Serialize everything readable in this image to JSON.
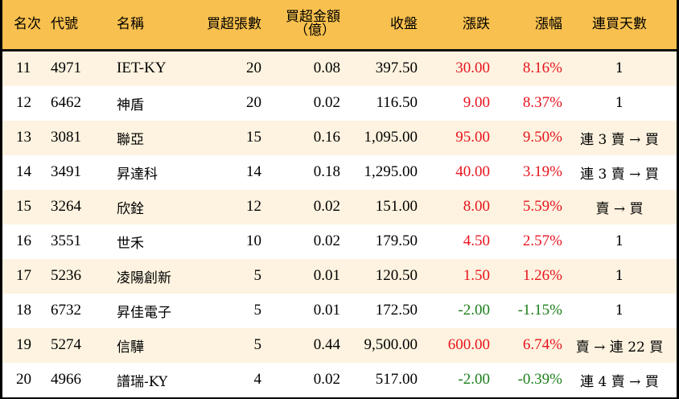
{
  "table": {
    "headers": {
      "rank": "名次",
      "code": "代號",
      "name": "名稱",
      "net_buy_lots": "買超張數",
      "net_buy_amount_l1": "買超金額",
      "net_buy_amount_l2": "（億）",
      "close": "收盤",
      "change": "漲跌",
      "change_pct": "漲幅",
      "consecutive_days": "連買天數"
    },
    "colors": {
      "header_bg": "#F8C04E",
      "row_alt_bg": "#FDF3E0",
      "up": "#E8141E",
      "down": "#1B7F1B"
    },
    "rows": [
      {
        "rank": "11",
        "code": "4971",
        "name": "IET-KY",
        "lots": "20",
        "amount": "0.08",
        "close": "397.50",
        "change": "30.00",
        "pct": "8.16%",
        "dir": "up",
        "days": "1"
      },
      {
        "rank": "12",
        "code": "6462",
        "name": "神盾",
        "lots": "20",
        "amount": "0.02",
        "close": "116.50",
        "change": "9.00",
        "pct": "8.37%",
        "dir": "up",
        "days": "1"
      },
      {
        "rank": "13",
        "code": "3081",
        "name": "聯亞",
        "lots": "15",
        "amount": "0.16",
        "close": "1,095.00",
        "change": "95.00",
        "pct": "9.50%",
        "dir": "up",
        "days": "連 3 賣 → 買"
      },
      {
        "rank": "14",
        "code": "3491",
        "name": "昇達科",
        "lots": "14",
        "amount": "0.18",
        "close": "1,295.00",
        "change": "40.00",
        "pct": "3.19%",
        "dir": "up",
        "days": "連 3 賣 → 買"
      },
      {
        "rank": "15",
        "code": "3264",
        "name": "欣銓",
        "lots": "12",
        "amount": "0.02",
        "close": "151.00",
        "change": "8.00",
        "pct": "5.59%",
        "dir": "up",
        "days": "賣 → 買"
      },
      {
        "rank": "16",
        "code": "3551",
        "name": "世禾",
        "lots": "10",
        "amount": "0.02",
        "close": "179.50",
        "change": "4.50",
        "pct": "2.57%",
        "dir": "up",
        "days": "1"
      },
      {
        "rank": "17",
        "code": "5236",
        "name": "凌陽創新",
        "lots": "5",
        "amount": "0.01",
        "close": "120.50",
        "change": "1.50",
        "pct": "1.26%",
        "dir": "up",
        "days": "1"
      },
      {
        "rank": "18",
        "code": "6732",
        "name": "昇佳電子",
        "lots": "5",
        "amount": "0.01",
        "close": "172.50",
        "change": "-2.00",
        "pct": "-1.15%",
        "dir": "down",
        "days": "1"
      },
      {
        "rank": "19",
        "code": "5274",
        "name": "信驊",
        "lots": "5",
        "amount": "0.44",
        "close": "9,500.00",
        "change": "600.00",
        "pct": "6.74%",
        "dir": "up",
        "days": "賣 → 連 22 買"
      },
      {
        "rank": "20",
        "code": "4966",
        "name": "譜瑞-KY",
        "lots": "4",
        "amount": "0.02",
        "close": "517.00",
        "change": "-2.00",
        "pct": "-0.39%",
        "dir": "down",
        "days": "連 4 賣 → 買"
      }
    ]
  }
}
